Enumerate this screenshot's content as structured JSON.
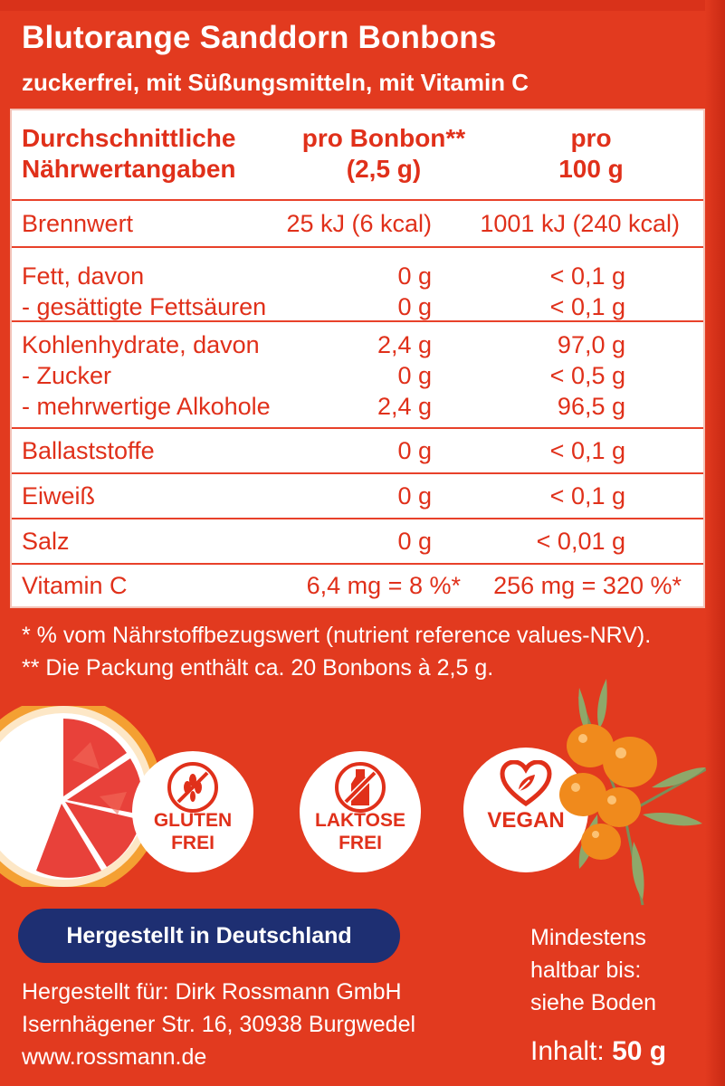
{
  "product": {
    "title": "Blutorange Sanddorn Bonbons",
    "subtitle": "zuckerfrei, mit Süßungsmitteln, mit Vitamin C"
  },
  "nutrition": {
    "header": {
      "col1_line1": "Durchschnittliche",
      "col1_line2": "Nährwertangaben",
      "col2_line1": "pro Bonbon**",
      "col2_line2": "(2,5 g)",
      "col3_line1": "pro",
      "col3_line2": "100 g"
    },
    "rows": {
      "brennwert": {
        "label": "Brennwert",
        "per_piece": "25 kJ (6 kcal)",
        "per_100": "1001 kJ (240 kcal)"
      },
      "fett": {
        "label": "Fett, davon",
        "per_piece": "0 g",
        "per_100": "< 0,1 g"
      },
      "fettsaeuren": {
        "label": "- gesättigte Fettsäuren",
        "per_piece": "0 g",
        "per_100": "< 0,1 g"
      },
      "kohlenhydrate": {
        "label": "Kohlenhydrate, davon",
        "per_piece": "2,4 g",
        "per_100": "97,0 g"
      },
      "zucker": {
        "label": "- Zucker",
        "per_piece": "0 g",
        "per_100": "< 0,5 g"
      },
      "alkohole": {
        "label": "- mehrwertige Alkohole",
        "per_piece": "2,4 g",
        "per_100": "96,5 g"
      },
      "ballaststoffe": {
        "label": "Ballaststoffe",
        "per_piece": "0 g",
        "per_100": "< 0,1 g"
      },
      "eiweiss": {
        "label": "Eiweiß",
        "per_piece": "0 g",
        "per_100": "< 0,1 g"
      },
      "salz": {
        "label": "Salz",
        "per_piece": "0 g",
        "per_100": "< 0,01 g"
      },
      "vitamin_c": {
        "label": "Vitamin C",
        "per_piece": "6,4 mg = 8 %*",
        "per_100": "256 mg = 320 %*"
      }
    }
  },
  "footnotes": {
    "nrv": "* % vom Nährstoffbezugswert (nutrient reference values-NRV).",
    "pack": "** Die Packung enthält ca. 20 Bonbons à 2,5 g."
  },
  "badges": {
    "gluten": {
      "line1": "GLUTEN",
      "line2": "FREI",
      "icon": "wheat-icon"
    },
    "laktose": {
      "line1": "LAKTOSE",
      "line2": "FREI",
      "icon": "milk-bottle-icon"
    },
    "vegan": {
      "label": "VEGAN",
      "icon": "heart-leaf-icon"
    }
  },
  "made_in": "Hergestellt in Deutschland",
  "manufacturer": {
    "line1": "Hergestellt für: Dirk Rossmann GmbH",
    "line2": "Isernhägener Str. 16, 30938 Burgwedel",
    "line3": "www.rossmann.de"
  },
  "best_before": {
    "line1": "Mindestens",
    "line2": "haltbar bis:",
    "line3": "siehe Boden"
  },
  "content": {
    "label": "Inhalt:",
    "value": "50 g"
  },
  "colors": {
    "background": "#e23a1f",
    "table_text": "#e0301a",
    "made_in_bg": "#1e2f72",
    "berry": "#f08a1c",
    "grapefruit": "#e8413a"
  }
}
